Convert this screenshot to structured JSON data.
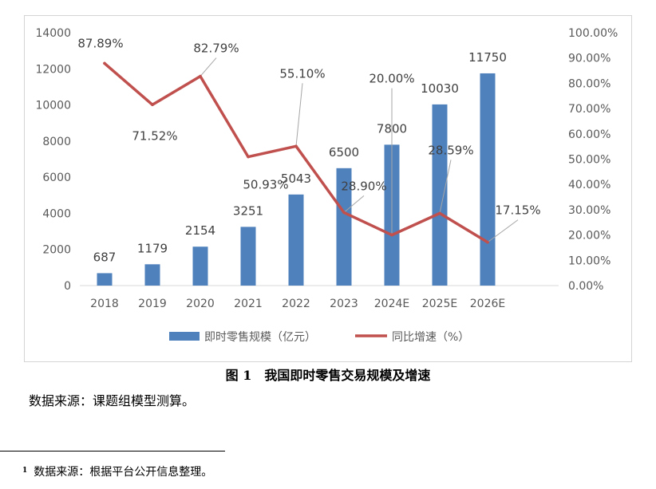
{
  "chart_data": {
    "type": "bar",
    "title": "",
    "categories": [
      "2018",
      "2019",
      "2020",
      "2021",
      "2022",
      "2023",
      "2024E",
      "2025E",
      "2026E"
    ],
    "series": [
      {
        "name": "即时零售规模（亿元）",
        "type": "bar",
        "axis": "left",
        "color": "#4f81bd",
        "values": [
          687,
          1179,
          2154,
          3251,
          5043,
          6500,
          7800,
          10030,
          11750
        ],
        "labels": [
          "687",
          "1179",
          "2154",
          "3251",
          "5043",
          "6500",
          "7800",
          "10030",
          "11750"
        ]
      },
      {
        "name": "同比增速（%）",
        "type": "line",
        "axis": "right",
        "color": "#c0504d",
        "values": [
          87.89,
          71.52,
          82.79,
          50.93,
          55.1,
          28.9,
          20.0,
          28.59,
          17.15
        ],
        "labels": [
          "87.89%",
          "71.52%",
          "82.79%",
          "50.93%",
          "55.10%",
          "28.90%",
          "20.00%",
          "28.59%",
          "17.15%"
        ]
      }
    ],
    "y_left": {
      "min": 0,
      "max": 14000,
      "ticks": [
        "0",
        "2000",
        "4000",
        "6000",
        "8000",
        "10000",
        "12000",
        "14000"
      ]
    },
    "y_right": {
      "min": 0,
      "max": 100,
      "ticks": [
        "0.00%",
        "10.00%",
        "20.00%",
        "30.00%",
        "40.00%",
        "50.00%",
        "60.00%",
        "70.00%",
        "80.00%",
        "90.00%",
        "100.00%"
      ]
    },
    "grid": false,
    "legend": "bottom"
  },
  "caption": "图 1　我国即时零售交易规模及增速",
  "source_note": "数据来源：课题组模型测算。",
  "footnote": {
    "marker": "1",
    "text": "数据来源：根据平台公开信息整理。"
  }
}
